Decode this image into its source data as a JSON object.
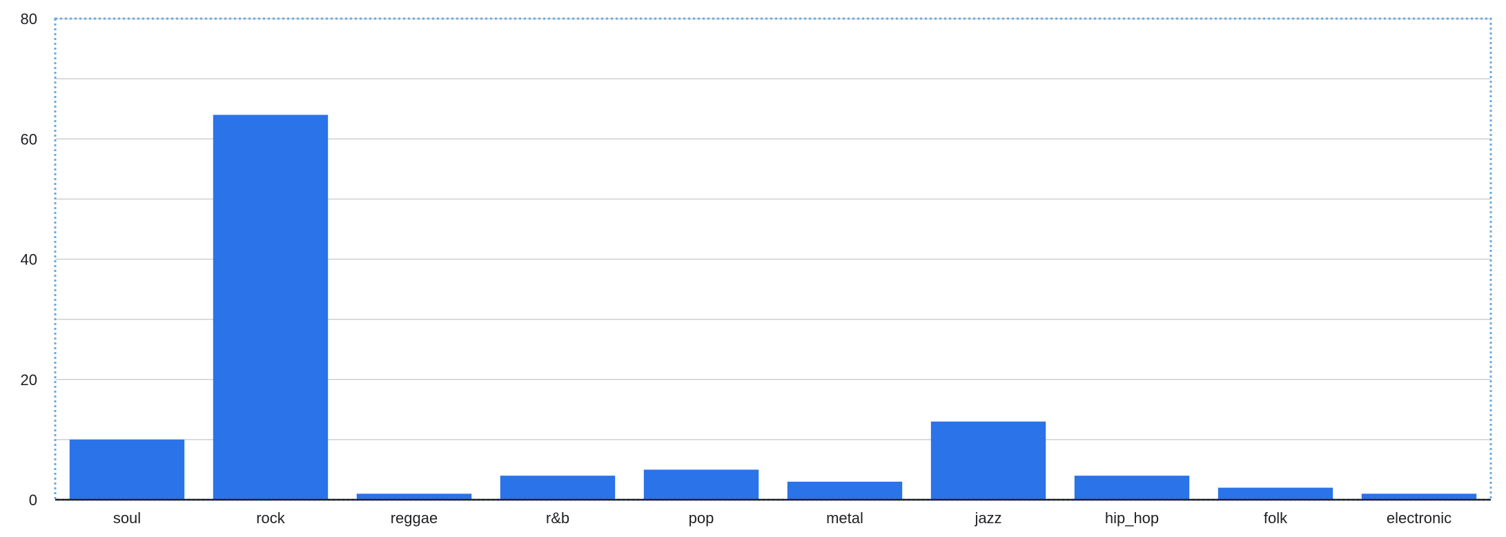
{
  "chart_data": {
    "type": "bar",
    "categories": [
      "soul",
      "rock",
      "reggae",
      "r&b",
      "pop",
      "metal",
      "jazz",
      "hip_hop",
      "folk",
      "electronic"
    ],
    "values": [
      10,
      64,
      1,
      4,
      5,
      3,
      13,
      4,
      2,
      1
    ],
    "ylim": [
      0,
      80
    ],
    "yticks": [
      0,
      20,
      40,
      60,
      80
    ],
    "grid": true,
    "colors": {
      "bar": "#2a73e8",
      "grid": "#cfcfcf",
      "frame": "#6aa8e0"
    }
  }
}
